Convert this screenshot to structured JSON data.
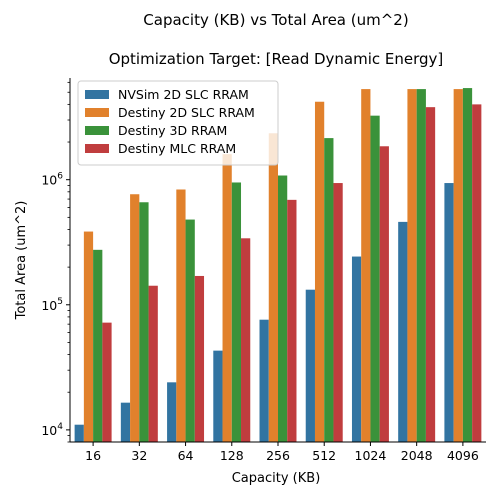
{
  "chart_data": {
    "type": "bar",
    "title": "Capacity (KB) vs Total Area (um^2)",
    "subtitle": "Optimization Target: [Read Dynamic Energy]",
    "xlabel": "Capacity (KB)",
    "ylabel": "Total Area (um^2)",
    "yscale": "log",
    "ylim": [
      8000,
      6500000
    ],
    "yticks": [
      {
        "value": 10000,
        "base": "10",
        "exp": "4"
      },
      {
        "value": 100000,
        "base": "10",
        "exp": "5"
      },
      {
        "value": 1000000,
        "base": "10",
        "exp": "6"
      }
    ],
    "categories": [
      "16",
      "32",
      "64",
      "128",
      "256",
      "512",
      "1024",
      "2048",
      "4096"
    ],
    "legend_position": "top-left",
    "grid": false,
    "series": [
      {
        "name": "NVSim 2D SLC RRAM",
        "color": "#3274a1",
        "values": [
          11000,
          16500,
          24000,
          43000,
          76000,
          132000,
          243000,
          460000,
          940000
        ]
      },
      {
        "name": "Destiny 2D SLC RRAM",
        "color": "#e1812c",
        "values": [
          385000,
          765000,
          835000,
          1600000,
          2350000,
          4200000,
          5300000,
          5300000,
          5300000
        ]
      },
      {
        "name": "Destiny 3D RRAM",
        "color": "#3a923a",
        "values": [
          275000,
          660000,
          480000,
          950000,
          1080000,
          2150000,
          3250000,
          5300000,
          5400000
        ]
      },
      {
        "name": "Destiny MLC RRAM",
        "color": "#c03d3e",
        "values": [
          72000,
          142000,
          170000,
          340000,
          690000,
          940000,
          1850000,
          3800000,
          4000000
        ]
      }
    ]
  }
}
